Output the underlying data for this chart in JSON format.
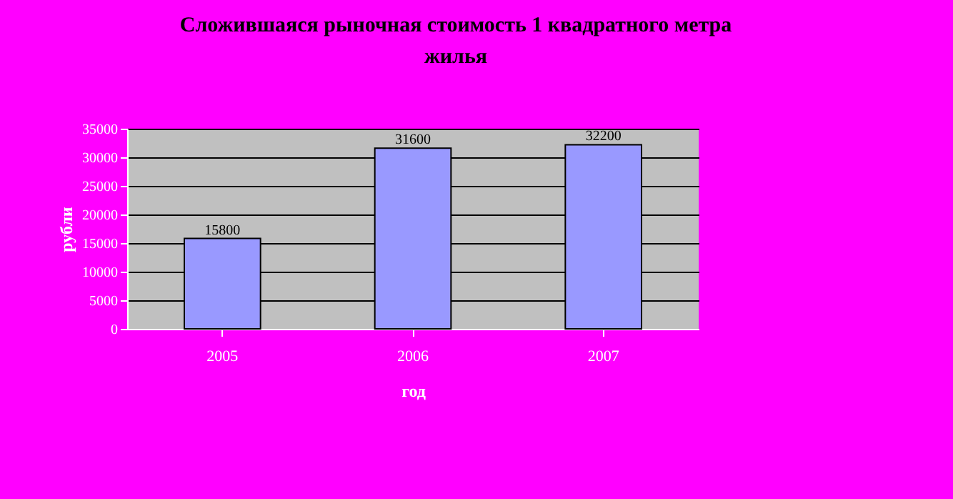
{
  "chart_data": {
    "type": "bar",
    "title": "Сложившаяся рыночная стоимость 1 квадратного метра жилья",
    "xlabel": "год",
    "ylabel": "рубли",
    "categories": [
      "2005",
      "2006",
      "2007"
    ],
    "series": [
      {
        "color": "#9999ff",
        "values": [
          15800,
          31600,
          32200
        ]
      }
    ],
    "ylim": [
      0,
      35000
    ],
    "yticks": [
      0,
      5000,
      10000,
      15000,
      20000,
      25000,
      30000,
      35000
    ],
    "grid": "y",
    "data_labels": true
  }
}
